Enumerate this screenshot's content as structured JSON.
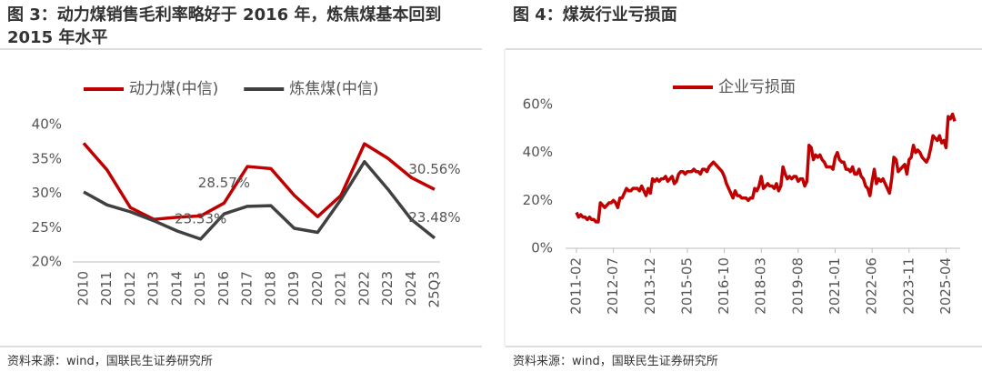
{
  "chart_data": [
    {
      "type": "line",
      "title": "图 3：动力煤销售毛利率略好于 2016 年，炼焦煤基本回到 2015 年水平",
      "source": "资料来源：wind，国联民生证券研究所",
      "categories": [
        "2010",
        "2011",
        "2012",
        "2013",
        "2014",
        "2015",
        "2016",
        "2017",
        "2018",
        "2019",
        "2020",
        "2021",
        "2022",
        "2023",
        "2024",
        "25Q3"
      ],
      "series": [
        {
          "name": "动力煤(中信)",
          "color": "#c00000",
          "values": [
            37.3,
            33.4,
            27.9,
            26.2,
            26.5,
            26.7,
            28.57,
            33.9,
            33.6,
            29.7,
            26.6,
            29.7,
            37.2,
            35.1,
            32.3,
            30.56
          ],
          "value_labels": [
            null,
            null,
            null,
            null,
            null,
            null,
            "28.57%",
            null,
            null,
            null,
            null,
            null,
            null,
            null,
            null,
            "30.56%"
          ]
        },
        {
          "name": "炼焦煤(中信)",
          "color": "#404040",
          "values": [
            30.2,
            28.3,
            27.3,
            26.0,
            24.5,
            23.33,
            27.0,
            28.1,
            28.2,
            24.9,
            24.3,
            29.1,
            34.6,
            30.6,
            26.2,
            23.48
          ],
          "value_labels": [
            null,
            null,
            null,
            null,
            null,
            "23.33%",
            null,
            null,
            null,
            null,
            null,
            null,
            null,
            null,
            null,
            "23.48%"
          ]
        }
      ],
      "ylim": [
        20,
        40
      ],
      "yticks": [
        {
          "value": 20,
          "label": "20%"
        },
        {
          "value": 25,
          "label": "25%"
        },
        {
          "value": 30,
          "label": "30%"
        },
        {
          "value": 35,
          "label": "35%"
        },
        {
          "value": 40,
          "label": "40%"
        }
      ],
      "grid": false
    },
    {
      "type": "line",
      "title": "图 4：煤炭行业亏损面",
      "source": "资料来源：wind，国联民生证券研究所",
      "categories": [
        "2011-02",
        null,
        null,
        null,
        null,
        null,
        null,
        null,
        null,
        null,
        null,
        null,
        null,
        null,
        null,
        null,
        null,
        "2012-07",
        null,
        null,
        null,
        null,
        null,
        null,
        null,
        null,
        null,
        null,
        null,
        null,
        null,
        null,
        null,
        null,
        "2013-12",
        null,
        null,
        null,
        null,
        null,
        null,
        null,
        null,
        null,
        null,
        null,
        null,
        null,
        null,
        null,
        null,
        "2015-05",
        null,
        null,
        null,
        null,
        null,
        null,
        null,
        null,
        null,
        null,
        null,
        null,
        null,
        null,
        null,
        null,
        "2016-10",
        null,
        null,
        null,
        null,
        null,
        null,
        null,
        null,
        null,
        null,
        null,
        null,
        null,
        null,
        null,
        null,
        "2018-03",
        null,
        null,
        null,
        null,
        null,
        null,
        null,
        null,
        null,
        null,
        null,
        null,
        null,
        null,
        null,
        null,
        "2019-08",
        null,
        null,
        null,
        null,
        null,
        null,
        null,
        null,
        null,
        null,
        null,
        null,
        null,
        null,
        null,
        null,
        "2021-01",
        null,
        null,
        null,
        null,
        null,
        null,
        null,
        null,
        null,
        null,
        null,
        null,
        null,
        null,
        null,
        null,
        "2022-06",
        null,
        null,
        null,
        null,
        null,
        null,
        null,
        null,
        null,
        null,
        null,
        null,
        null,
        null,
        null,
        null,
        "2023-11",
        null,
        null,
        null,
        null,
        null,
        null,
        null,
        null,
        null,
        null,
        null,
        null,
        null,
        null,
        null,
        null,
        "2025-04",
        null,
        null,
        null,
        null
      ],
      "series": [
        {
          "name": "企业亏损面",
          "color": "#c00000",
          "values": [
            15,
            13,
            14,
            13,
            13,
            12,
            13,
            12,
            12,
            11,
            11,
            19,
            18,
            17,
            18,
            19,
            19,
            20,
            19,
            17,
            21,
            21,
            23,
            25,
            24,
            24,
            25,
            25,
            25,
            24,
            26,
            24,
            22,
            25,
            23,
            29,
            28,
            29,
            28,
            29,
            29,
            30,
            28,
            29,
            30,
            27,
            28,
            31,
            32,
            32,
            31,
            32,
            32,
            32,
            33,
            32,
            32,
            31,
            33,
            33,
            32,
            34,
            35,
            36,
            35,
            34,
            33,
            32,
            30,
            27,
            25,
            23,
            21,
            24,
            22,
            22,
            21,
            21,
            21,
            20,
            21,
            21,
            25,
            24,
            26,
            30,
            25,
            26,
            27,
            26,
            26,
            25,
            27,
            24,
            26,
            34,
            31,
            29,
            30,
            29,
            30,
            30,
            28,
            29,
            29,
            26,
            28,
            43,
            42,
            37,
            39,
            38,
            39,
            37,
            36,
            34,
            34,
            34,
            33,
            38,
            40,
            37,
            36,
            36,
            33,
            33,
            32,
            34,
            31,
            31,
            33,
            30,
            29,
            26,
            25,
            22,
            28,
            33,
            27,
            29,
            28,
            29,
            27,
            25,
            23,
            29,
            38,
            37,
            32,
            33,
            34,
            35,
            31,
            37,
            38,
            43,
            40,
            41,
            40,
            38,
            37,
            36,
            38,
            42,
            47,
            46,
            45,
            47,
            44,
            45,
            42,
            55,
            54,
            56,
            53
          ]
        }
      ],
      "ylim": [
        0,
        60
      ],
      "yticks": [
        {
          "value": 0,
          "label": "0%"
        },
        {
          "value": 20,
          "label": "20%"
        },
        {
          "value": 40,
          "label": "40%"
        },
        {
          "value": 60,
          "label": "60%"
        }
      ],
      "grid": false
    }
  ]
}
